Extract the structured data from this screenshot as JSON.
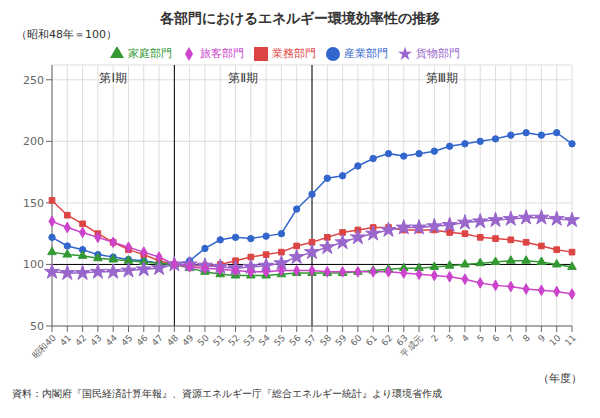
{
  "chart_data": {
    "type": "line",
    "title": "各部門におけるエネルギー環境効率性の推移",
    "y_label": "（昭和48年＝100）",
    "x_label": "（年度）",
    "footnote": "資料：内閣府『国民経済計算年報』、資源エネルギー庁『総合エネルギー統計』より環境省作成",
    "categories": [
      "昭和40",
      "41",
      "42",
      "43",
      "44",
      "45",
      "46",
      "47",
      "48",
      "49",
      "50",
      "51",
      "52",
      "53",
      "54",
      "55",
      "56",
      "57",
      "58",
      "59",
      "60",
      "61",
      "62",
      "63",
      "平成元",
      "2",
      "3",
      "4",
      "5",
      "6",
      "7",
      "8",
      "9",
      "10",
      "11"
    ],
    "series": [
      {
        "name": "産業部門",
        "color": "#3366cc",
        "marker": "circle",
        "values": [
          122,
          115,
          112,
          108,
          106,
          104,
          103,
          101,
          100,
          103,
          113,
          120,
          122,
          121,
          123,
          125,
          145,
          157,
          170,
          172,
          180,
          186,
          190,
          188,
          190,
          192,
          196,
          198,
          200,
          202,
          205,
          207,
          205,
          207,
          198
        ]
      },
      {
        "name": "業務部門",
        "color": "#dd4444",
        "marker": "square",
        "values": [
          152,
          140,
          133,
          125,
          118,
          112,
          108,
          103,
          100,
          99,
          99,
          100,
          103,
          106,
          108,
          110,
          115,
          118,
          122,
          126,
          128,
          130,
          130,
          128,
          128,
          128,
          126,
          125,
          122,
          121,
          120,
          118,
          115,
          112,
          110
        ]
      },
      {
        "name": "家庭部門",
        "color": "#339933",
        "marker": "triangle",
        "values": [
          110,
          108,
          107,
          105,
          104,
          103,
          102,
          101,
          100,
          97,
          94,
          92,
          91,
          91,
          91,
          92,
          93,
          93,
          93,
          93,
          94,
          95,
          96,
          97,
          97,
          98,
          99,
          100,
          101,
          102,
          103,
          103,
          102,
          100,
          98
        ]
      },
      {
        "name": "貨物部門",
        "color": "#9966cc",
        "marker": "star",
        "values": [
          94,
          93,
          93,
          94,
          94,
          95,
          96,
          97,
          100,
          100,
          99,
          98,
          97,
          98,
          99,
          101,
          106,
          110,
          114,
          118,
          122,
          125,
          128,
          130,
          130,
          131,
          132,
          134,
          135,
          136,
          137,
          138,
          138,
          137,
          136
        ]
      },
      {
        "name": "旅客部門",
        "color": "#cc44cc",
        "marker": "diamond",
        "values": [
          135,
          130,
          126,
          122,
          118,
          114,
          110,
          106,
          100,
          98,
          97,
          96,
          95,
          94,
          94,
          95,
          95,
          95,
          94,
          94,
          94,
          94,
          94,
          93,
          92,
          91,
          90,
          88,
          85,
          83,
          82,
          80,
          79,
          78,
          76
        ]
      }
    ],
    "periods": [
      {
        "label": "第Ⅰ期",
        "from": "昭和40",
        "to": "48"
      },
      {
        "label": "第Ⅱ期",
        "from": "48",
        "to": "57"
      },
      {
        "label": "第Ⅲ期",
        "from": "57",
        "to": "11"
      }
    ],
    "hlines": [
      100
    ],
    "ylim": [
      50,
      262
    ],
    "yticks": [
      50,
      100,
      150,
      200,
      250
    ],
    "grid": true,
    "legend": "top"
  }
}
